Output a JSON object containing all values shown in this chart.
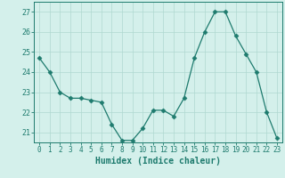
{
  "x": [
    0,
    1,
    2,
    3,
    4,
    5,
    6,
    7,
    8,
    9,
    10,
    11,
    12,
    13,
    14,
    15,
    16,
    17,
    18,
    19,
    20,
    21,
    22,
    23
  ],
  "y": [
    24.7,
    24.0,
    23.0,
    22.7,
    22.7,
    22.6,
    22.5,
    21.4,
    20.6,
    20.6,
    21.2,
    22.1,
    22.1,
    21.8,
    22.7,
    24.7,
    26.0,
    27.0,
    27.0,
    25.8,
    24.9,
    24.0,
    22.0,
    20.7
  ],
  "line_color": "#1e7b6e",
  "marker": "D",
  "marker_size": 2.5,
  "bg_color": "#d4f0eb",
  "grid_color": "#afd8d0",
  "axis_color": "#1e7b6e",
  "xlabel": "Humidex (Indice chaleur)",
  "ylim": [
    20.5,
    27.5
  ],
  "xlim": [
    -0.5,
    23.5
  ],
  "yticks": [
    21,
    22,
    23,
    24,
    25,
    26,
    27
  ],
  "xticks": [
    0,
    1,
    2,
    3,
    4,
    5,
    6,
    7,
    8,
    9,
    10,
    11,
    12,
    13,
    14,
    15,
    16,
    17,
    18,
    19,
    20,
    21,
    22,
    23
  ],
  "tick_fontsize": 5.5,
  "ytick_fontsize": 6.0,
  "xlabel_fontsize": 7.0
}
